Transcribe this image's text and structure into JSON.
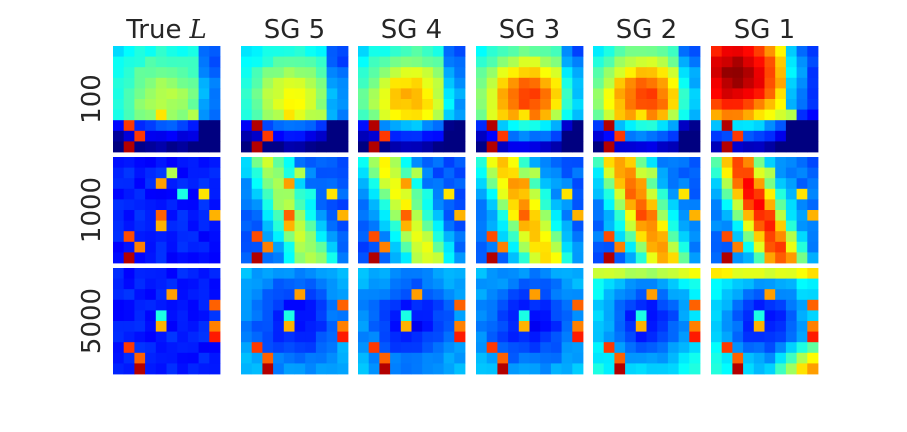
{
  "chart_data": {
    "type": "heatmap",
    "colormap": "jet",
    "grid": false,
    "columns": [
      "True L",
      "SG 5",
      "SG 4",
      "SG 3",
      "SG 2",
      "SG 1"
    ],
    "column_title_parts": [
      {
        "text": "True",
        "math": "L"
      },
      {
        "text": "SG 5"
      },
      {
        "text": "SG 4"
      },
      {
        "text": "SG 3"
      },
      {
        "text": "SG 2"
      },
      {
        "text": "SG 1"
      }
    ],
    "rows": [
      "100",
      "1000",
      "5000"
    ],
    "matrix_size": 10
  }
}
